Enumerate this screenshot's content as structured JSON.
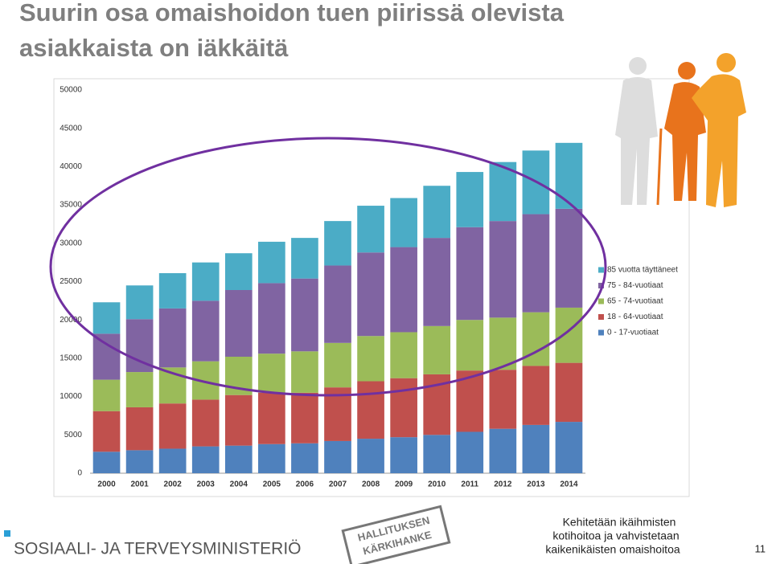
{
  "title_lines": [
    "Suurin osa omaishoidon tuen piirissä olevista",
    "asiakkaista on iäkkäitä"
  ],
  "chart_data": {
    "type": "stacked-bar",
    "categories": [
      "2000",
      "2001",
      "2002",
      "2003",
      "2004",
      "2005",
      "2006",
      "2007",
      "2008",
      "2009",
      "2010",
      "2011",
      "2012",
      "2013",
      "2014"
    ],
    "series": [
      {
        "name": "0 - 17-vuotiaat",
        "color": "#4f81bd",
        "values": [
          2800,
          3000,
          3200,
          3500,
          3600,
          3800,
          3900,
          4200,
          4500,
          4700,
          5000,
          5400,
          5800,
          6300,
          6700
        ]
      },
      {
        "name": "18 - 64-vuotiaat",
        "color": "#c0504d",
        "values": [
          5300,
          5600,
          5900,
          6100,
          6600,
          6700,
          6600,
          7000,
          7500,
          7700,
          7900,
          8000,
          7700,
          7700,
          7700
        ]
      },
      {
        "name": "65 - 74-vuotiaat",
        "color": "#9bbb59",
        "values": [
          4100,
          4600,
          4700,
          5000,
          5000,
          5100,
          5400,
          5800,
          5900,
          6000,
          6300,
          6600,
          6800,
          7000,
          7200
        ]
      },
      {
        "name": "75 - 84-vuotiaat",
        "color": "#8064a2",
        "values": [
          6000,
          6900,
          7700,
          7900,
          8700,
          9200,
          9500,
          10100,
          10900,
          11100,
          11500,
          12100,
          12600,
          12800,
          12900
        ]
      },
      {
        "name": "85 vuotta täyttäneet",
        "color": "#4bacc6",
        "values": [
          4100,
          4400,
          4600,
          5000,
          4800,
          5400,
          5300,
          5800,
          6100,
          6400,
          6800,
          7200,
          7700,
          8300,
          8600
        ]
      }
    ],
    "ylim": [
      0,
      50000
    ],
    "yticks": [
      0,
      5000,
      10000,
      15000,
      20000,
      25000,
      30000,
      35000,
      40000,
      45000,
      50000
    ],
    "grid": false,
    "legend": "right"
  },
  "footer": {
    "ministry": "SOSIAALI- JA TERVEYSMINISTERIÖ",
    "stamp": [
      "HALLITUKSEN",
      "KÄRKIHANKE"
    ],
    "tagline": [
      "Kehitetään ikäihmisten",
      "kotihoitoa ja vahvistetaan",
      "kaikenikäisten omaishoitoa"
    ],
    "page": "11"
  }
}
